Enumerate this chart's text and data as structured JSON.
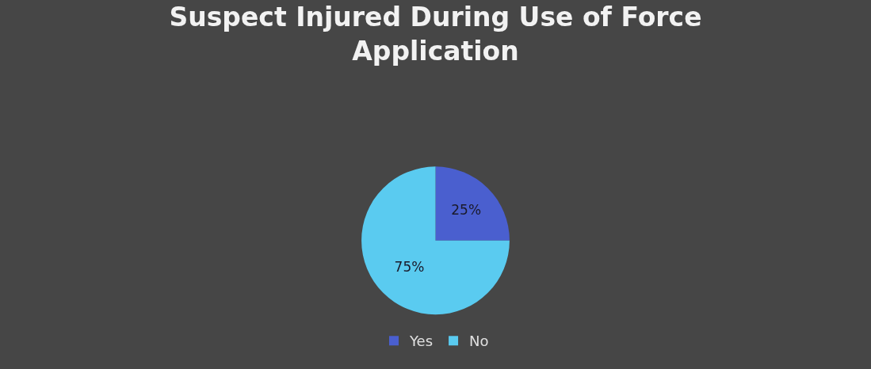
{
  "chart_data": {
    "type": "pie",
    "title": "Suspect Injured During Use of Force Application",
    "categories": [
      "Yes",
      "No"
    ],
    "values": [
      25,
      75
    ],
    "colors": [
      "#4a5fcf",
      "#5acbf0"
    ],
    "value_labels": [
      "25%",
      "75%"
    ],
    "legend": "bottom"
  }
}
